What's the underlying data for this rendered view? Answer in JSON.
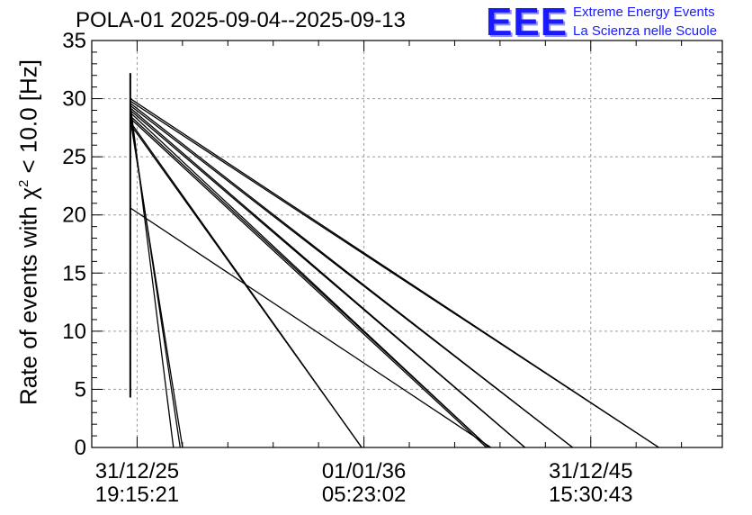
{
  "header": {
    "title": "POLA-01 2025-09-04--2025-09-13"
  },
  "logo": {
    "mark": "EEE",
    "line1": "Extreme Energy Events",
    "line2": "La Scienza nelle Scuole",
    "color": "#1a1aff"
  },
  "chart_data": {
    "type": "line",
    "title": "POLA-01 2025-09-04--2025-09-13",
    "ylabel_prefix": "Rate of events with ",
    "ylabel_chi": "χ",
    "ylabel_sup": "2",
    "ylabel_suffix": " < 10.0 [Hz]",
    "xlabel": "",
    "x_unit": "years after 31/12/25 19:15:21",
    "xlim": [
      -2.0,
      25.8
    ],
    "ylim": [
      0,
      35
    ],
    "y_ticks": [
      0,
      5,
      10,
      15,
      20,
      25,
      30,
      35
    ],
    "x_ticks": [
      {
        "x": 0,
        "date": "31/12/25",
        "time": "19:15:21"
      },
      {
        "x": 10,
        "date": "01/01/36",
        "time": "05:23:02"
      },
      {
        "x": 20,
        "date": "31/12/45",
        "time": "15:30:43"
      }
    ],
    "grid": true,
    "vertical_band": {
      "x": -0.3,
      "ymin": 4.3,
      "ymax": 32.2
    },
    "series": [
      {
        "points": [
          [
            -0.3,
            30.0
          ],
          [
            23.0,
            0
          ]
        ]
      },
      {
        "points": [
          [
            -0.3,
            29.8
          ],
          [
            23.0,
            0
          ]
        ]
      },
      {
        "points": [
          [
            -0.3,
            29.6
          ],
          [
            19.2,
            0
          ]
        ]
      },
      {
        "points": [
          [
            -0.3,
            29.4
          ],
          [
            19.2,
            0
          ]
        ]
      },
      {
        "points": [
          [
            -0.3,
            29.2
          ],
          [
            17.1,
            0
          ]
        ]
      },
      {
        "points": [
          [
            -0.3,
            29.0
          ],
          [
            17.1,
            0
          ]
        ]
      },
      {
        "points": [
          [
            -0.3,
            28.8
          ],
          [
            15.5,
            0
          ]
        ]
      },
      {
        "points": [
          [
            -0.3,
            28.5
          ],
          [
            15.5,
            0
          ]
        ]
      },
      {
        "points": [
          [
            -0.3,
            28.3
          ],
          [
            15.4,
            0
          ]
        ]
      },
      {
        "points": [
          [
            -0.3,
            28.0
          ],
          [
            9.9,
            0
          ]
        ]
      },
      {
        "points": [
          [
            -0.3,
            27.8
          ],
          [
            9.9,
            0
          ]
        ]
      },
      {
        "points": [
          [
            -0.3,
            29.5
          ],
          [
            1.6,
            0
          ]
        ]
      },
      {
        "points": [
          [
            -0.3,
            28.7
          ],
          [
            1.9,
            0
          ]
        ]
      },
      {
        "points": [
          [
            -0.3,
            28.2
          ],
          [
            2.0,
            0
          ]
        ]
      },
      {
        "points": [
          [
            -0.3,
            20.6
          ],
          [
            15.6,
            0
          ]
        ]
      }
    ]
  }
}
